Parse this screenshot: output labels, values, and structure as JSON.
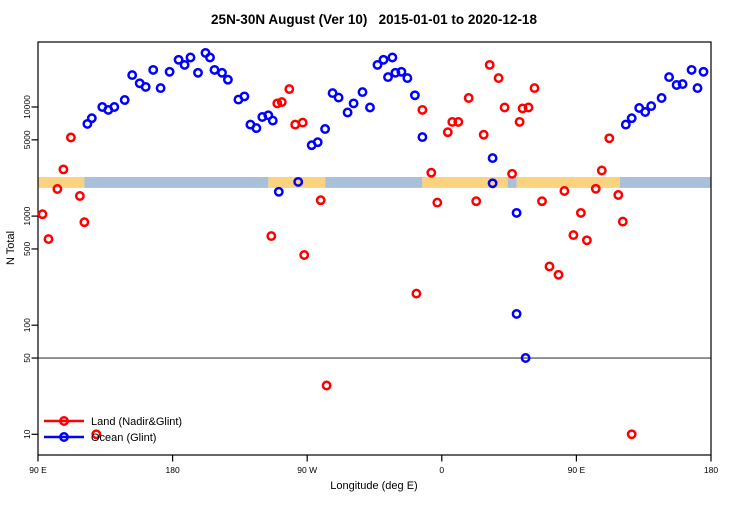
{
  "title": "25N-30N August (Ver 10)   2015-01-01 to 2020-12-18",
  "chart_data": {
    "type": "scatter",
    "title": "25N-30N August (Ver 10)   2015-01-01 to 2020-12-18",
    "xlabel": "Longitude (deg E)",
    "ylabel": "N Total",
    "x_axis": {
      "note": "longitude axis wraps eastward from 90E through 180, 90W, 0 back to 90E and 180",
      "range_deg": [
        90,
        540
      ],
      "ticks": [
        {
          "pos": 90,
          "label": "90 E"
        },
        {
          "pos": 180,
          "label": "180"
        },
        {
          "pos": 270,
          "label": "90 W"
        },
        {
          "pos": 360,
          "label": "0"
        },
        {
          "pos": 450,
          "label": "90 E"
        },
        {
          "pos": 540,
          "label": "180"
        }
      ]
    },
    "y_axis": {
      "scale": "log10",
      "range": [
        6.5,
        39000
      ],
      "ticks": [
        10000,
        5000,
        1000,
        500,
        100,
        50,
        10
      ]
    },
    "reference_line": {
      "value": 50,
      "color": "#8c8c8c"
    },
    "coast_band": {
      "value_top": 2280,
      "value_bottom": 1810,
      "land_color": "#FBD37E",
      "ocean_color": "#A9C0DB",
      "segments": [
        {
          "from": 90,
          "to": 121,
          "type": "land"
        },
        {
          "from": 121,
          "to": 244,
          "type": "ocean"
        },
        {
          "from": 244,
          "to": 282,
          "type": "land"
        },
        {
          "from": 282,
          "to": 347,
          "type": "ocean"
        },
        {
          "from": 347,
          "to": 404,
          "type": "land"
        },
        {
          "from": 404,
          "to": 410,
          "type": "ocean"
        },
        {
          "from": 410,
          "to": 479,
          "type": "land"
        },
        {
          "from": 479,
          "to": 540,
          "type": "ocean"
        }
      ]
    },
    "legend": {
      "position": "bottom-left"
    },
    "series": [
      {
        "name": "Land (Nadir&Glint)",
        "color": "#FF0000",
        "points": [
          [
            93,
            1040
          ],
          [
            97,
            615
          ],
          [
            103,
            1770
          ],
          [
            107,
            2680
          ],
          [
            112,
            5250
          ],
          [
            118,
            1530
          ],
          [
            121,
            880
          ],
          [
            129,
            10
          ],
          [
            246,
            655
          ],
          [
            250,
            10800
          ],
          [
            253,
            11100
          ],
          [
            258,
            14600
          ],
          [
            262,
            6900
          ],
          [
            267,
            7200
          ],
          [
            268,
            440
          ],
          [
            279,
            1400
          ],
          [
            283,
            28
          ],
          [
            343,
            195
          ],
          [
            347,
            9400
          ],
          [
            353,
            2500
          ],
          [
            357,
            1330
          ],
          [
            364,
            5870
          ],
          [
            367,
            7300
          ],
          [
            371,
            7300
          ],
          [
            378,
            12100
          ],
          [
            383,
            1370
          ],
          [
            388,
            5570
          ],
          [
            392,
            24300
          ],
          [
            398,
            18400
          ],
          [
            402,
            9900
          ],
          [
            407,
            2440
          ],
          [
            412,
            7300
          ],
          [
            414,
            9700
          ],
          [
            418,
            9900
          ],
          [
            422,
            14900
          ],
          [
            427,
            1370
          ],
          [
            432,
            345
          ],
          [
            438,
            290
          ],
          [
            442,
            1700
          ],
          [
            448,
            670
          ],
          [
            453,
            1070
          ],
          [
            457,
            600
          ],
          [
            463,
            1780
          ],
          [
            467,
            2620
          ],
          [
            472,
            5160
          ],
          [
            478,
            1560
          ],
          [
            481,
            890
          ],
          [
            487,
            10
          ]
        ]
      },
      {
        "name": "Ocean (Glint)",
        "color": "#0000FF",
        "points": [
          [
            123,
            7000
          ],
          [
            126,
            7900
          ],
          [
            133,
            10000
          ],
          [
            137,
            9400
          ],
          [
            141,
            10000
          ],
          [
            148,
            11600
          ],
          [
            153,
            19600
          ],
          [
            158,
            16500
          ],
          [
            162,
            15300
          ],
          [
            167,
            21900
          ],
          [
            172,
            14900
          ],
          [
            178,
            21000
          ],
          [
            184,
            27100
          ],
          [
            188,
            24300
          ],
          [
            192,
            28400
          ],
          [
            197,
            20600
          ],
          [
            202,
            31300
          ],
          [
            205,
            28400
          ],
          [
            208,
            21900
          ],
          [
            213,
            20600
          ],
          [
            217,
            17800
          ],
          [
            224,
            11700
          ],
          [
            228,
            12500
          ],
          [
            232,
            6900
          ],
          [
            236,
            6400
          ],
          [
            240,
            8100
          ],
          [
            244,
            8400
          ],
          [
            247,
            7500
          ],
          [
            251,
            1670
          ],
          [
            264,
            2060
          ],
          [
            273,
            4470
          ],
          [
            277,
            4760
          ],
          [
            282,
            6290
          ],
          [
            287,
            13400
          ],
          [
            291,
            12200
          ],
          [
            297,
            8900
          ],
          [
            301,
            10800
          ],
          [
            307,
            13700
          ],
          [
            312,
            9900
          ],
          [
            317,
            24300
          ],
          [
            321,
            27100
          ],
          [
            324,
            18800
          ],
          [
            327,
            28400
          ],
          [
            329,
            20600
          ],
          [
            333,
            21000
          ],
          [
            337,
            18400
          ],
          [
            342,
            12800
          ],
          [
            347,
            5300
          ],
          [
            394,
            3400
          ],
          [
            394,
            2000
          ],
          [
            410,
            1070
          ],
          [
            410,
            127
          ],
          [
            416,
            50
          ],
          [
            483,
            6900
          ],
          [
            487,
            7900
          ],
          [
            492,
            9800
          ],
          [
            496,
            9000
          ],
          [
            500,
            10200
          ],
          [
            507,
            12100
          ],
          [
            512,
            18800
          ],
          [
            517,
            15900
          ],
          [
            521,
            16200
          ],
          [
            527,
            21900
          ],
          [
            531,
            14900
          ],
          [
            535,
            21000
          ]
        ]
      }
    ]
  }
}
